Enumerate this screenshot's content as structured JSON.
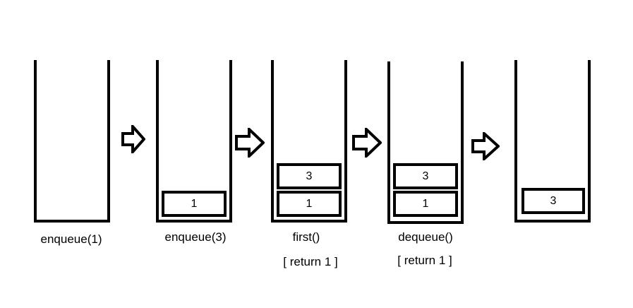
{
  "steps": [
    {
      "operation": "enqueue(1)",
      "result": "",
      "items": []
    },
    {
      "operation": "enqueue(3)",
      "result": "",
      "items": [
        "1"
      ]
    },
    {
      "operation": "first()",
      "result": "[ return 1 ]",
      "items": [
        "3",
        "1"
      ]
    },
    {
      "operation": "dequeue()",
      "result": "[ return 1 ]",
      "items": [
        "3",
        "1"
      ]
    },
    {
      "operation": "",
      "result": "",
      "items": [
        "3"
      ]
    }
  ],
  "colors": {
    "stroke": "#000000",
    "background": "#ffffff"
  },
  "icons": {
    "transition": "hollow-right-arrow-icon"
  }
}
